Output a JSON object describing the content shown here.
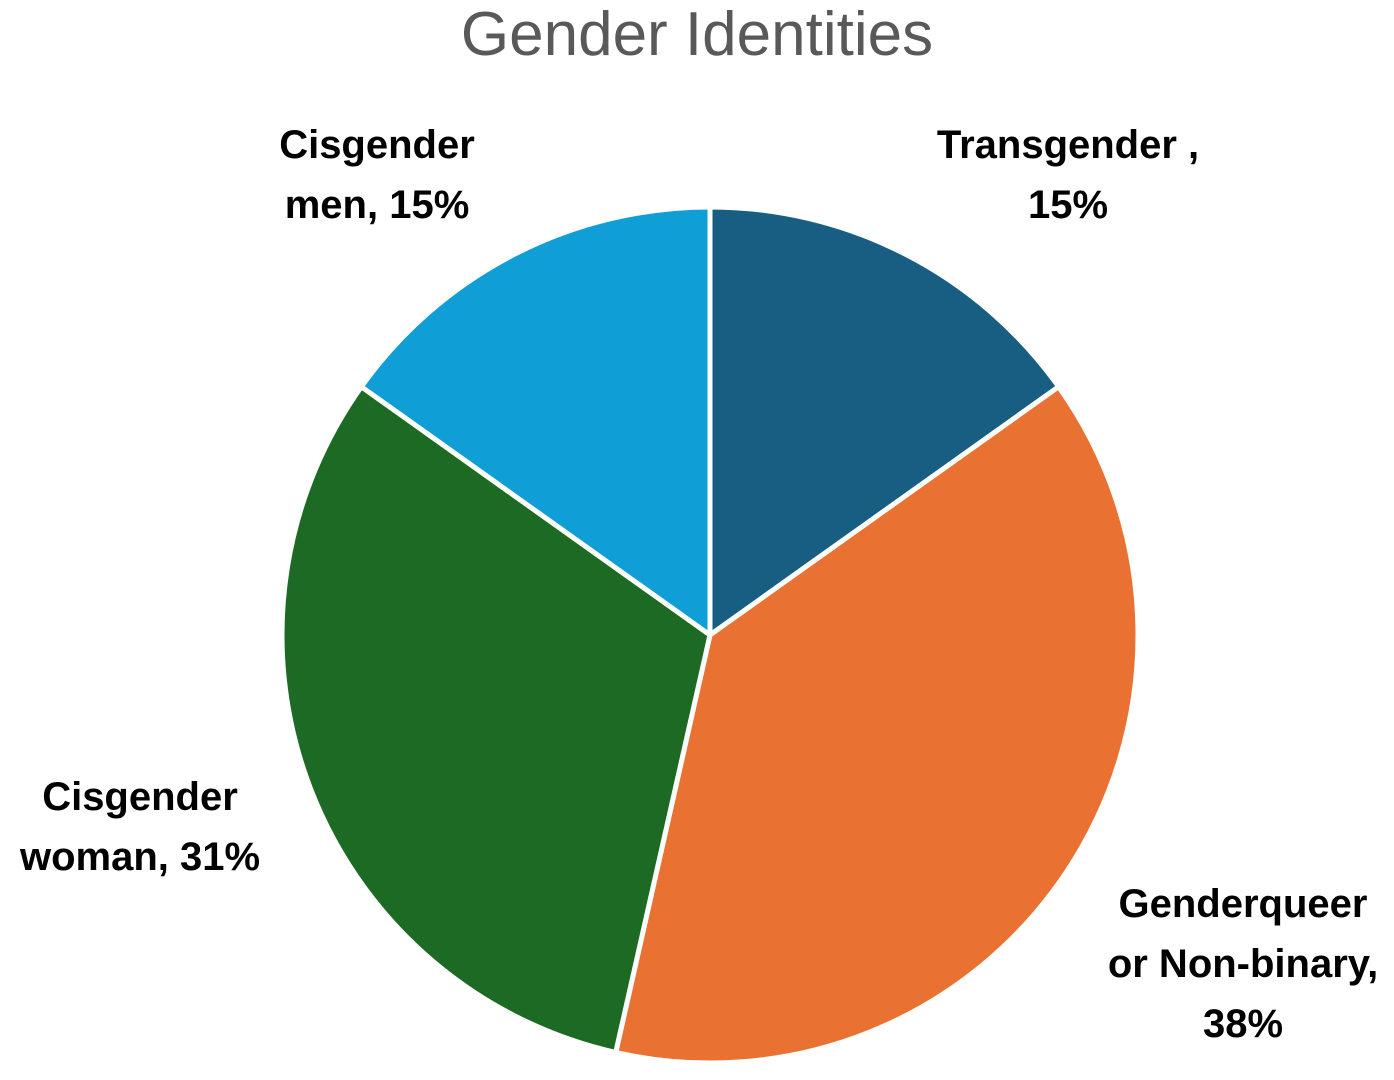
{
  "chart_data": {
    "type": "pie",
    "title": "Gender Identities",
    "slices": [
      {
        "label_lines": [
          "Transgender ,",
          "15%"
        ],
        "name": "Transgender",
        "value": 15,
        "color": "#185E82"
      },
      {
        "label_lines": [
          "Genderqueer",
          "or Non-binary,",
          "38%"
        ],
        "name": "Genderqueer or Non-binary",
        "value": 38,
        "color": "#E97132"
      },
      {
        "label_lines": [
          "Cisgender",
          "woman, 31%"
        ],
        "name": "Cisgender woman",
        "value": 31,
        "color": "#1C6A23"
      },
      {
        "label_lines": [
          "Cisgender",
          "men, 15%"
        ],
        "name": "Cisgender men",
        "value": 15,
        "color": "#0F9ED5"
      }
    ]
  }
}
